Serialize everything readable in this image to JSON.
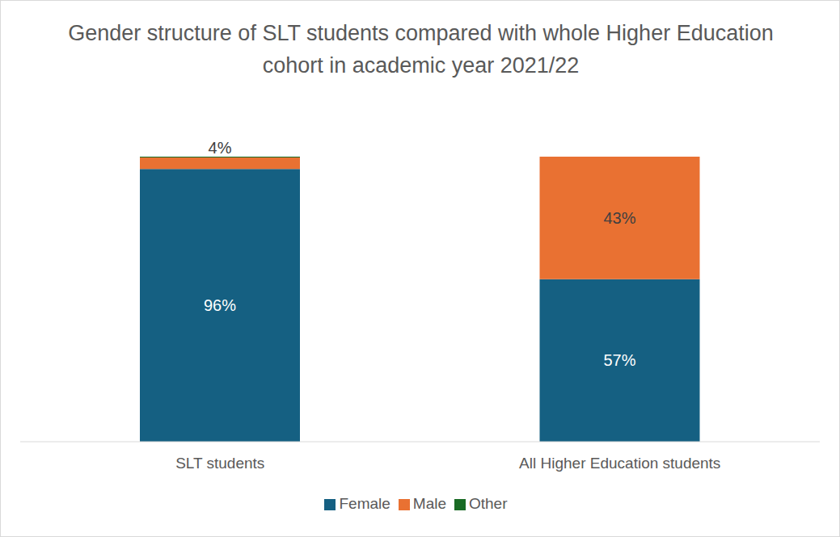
{
  "chart_data": {
    "type": "bar",
    "title": "Gender structure of SLT students compared with whole Higher Education cohort in academic year 2021/22",
    "categories": [
      "SLT students",
      "All Higher Education students"
    ],
    "series": [
      {
        "name": "Female",
        "color": "#156082",
        "values": [
          95.7,
          57
        ],
        "value_labels": [
          "96%",
          "57%"
        ]
      },
      {
        "name": "Male",
        "color": "#e97132",
        "values": [
          4,
          43
        ],
        "value_labels": [
          "4%",
          "43%"
        ]
      },
      {
        "name": "Other",
        "color": "#196b24",
        "values": [
          0.3,
          0
        ]
      }
    ],
    "ylim": [
      0,
      100
    ],
    "stacked": true,
    "data_labels": true,
    "legend": "bottom",
    "tick_labels": "x"
  }
}
